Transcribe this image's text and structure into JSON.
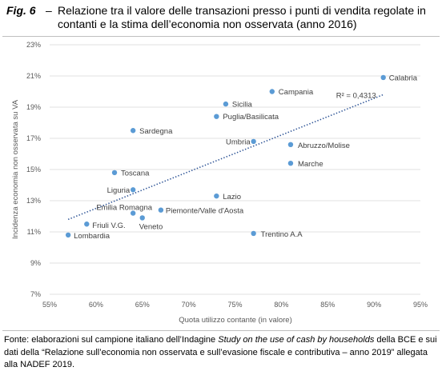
{
  "figure": {
    "label": "Fig. 6",
    "separator": "–"
  },
  "chart_data": {
    "type": "scatter",
    "title": "Relazione tra il valore delle transazioni presso i punti di vendita regolate in contanti e la stima dell’economia non osservata (anno 2016)",
    "xlabel": "Quota utilizzo contante (in valore)",
    "ylabel": "Incidenza economia non osservata su VA",
    "xlim": [
      55,
      95
    ],
    "ylim": [
      7,
      23
    ],
    "grid": "horizontal",
    "x_ticks": [
      {
        "value": 55,
        "label": "55%"
      },
      {
        "value": 60,
        "label": "60%"
      },
      {
        "value": 65,
        "label": "65%"
      },
      {
        "value": 70,
        "label": "70%"
      },
      {
        "value": 75,
        "label": "75%"
      },
      {
        "value": 80,
        "label": "80%"
      },
      {
        "value": 85,
        "label": "85%"
      },
      {
        "value": 90,
        "label": "90%"
      },
      {
        "value": 95,
        "label": "95%"
      }
    ],
    "y_ticks": [
      {
        "value": 23,
        "label": "23%"
      },
      {
        "value": 21,
        "label": "21%"
      },
      {
        "value": 19,
        "label": "19%"
      },
      {
        "value": 17,
        "label": "17%"
      },
      {
        "value": 15,
        "label": "15%"
      },
      {
        "value": 13,
        "label": "13%"
      },
      {
        "value": 11,
        "label": "11%"
      },
      {
        "value": 9,
        "label": "9%"
      },
      {
        "value": 7,
        "label": "7%"
      }
    ],
    "points": [
      {
        "label": "Calabria",
        "x": 91,
        "y": 20.9
      },
      {
        "label": "Campania",
        "x": 79,
        "y": 20.0
      },
      {
        "label": "Sicilia",
        "x": 74,
        "y": 19.2
      },
      {
        "label": "Puglia/Basilicata",
        "x": 73,
        "y": 18.4
      },
      {
        "label": "Sardegna",
        "x": 64,
        "y": 17.5
      },
      {
        "label": "Umbria",
        "x": 77,
        "y": 16.8
      },
      {
        "label": "Abruzzo/Molise",
        "x": 81,
        "y": 16.6
      },
      {
        "label": "Marche",
        "x": 81,
        "y": 15.4
      },
      {
        "label": "Toscana",
        "x": 62,
        "y": 14.8
      },
      {
        "label": "Liguria",
        "x": 64,
        "y": 13.7
      },
      {
        "label": "Lazio",
        "x": 73,
        "y": 13.3
      },
      {
        "label": "Piemonte/Valle d'Aosta",
        "x": 67,
        "y": 12.4
      },
      {
        "label": "Emilia Romagna",
        "x": 64,
        "y": 12.2
      },
      {
        "label": "Veneto",
        "x": 65,
        "y": 11.9
      },
      {
        "label": "Friuli V.G.",
        "x": 59,
        "y": 11.5
      },
      {
        "label": "Lombardia",
        "x": 57,
        "y": 10.8
      },
      {
        "label": "Trentino A.A",
        "x": 77,
        "y": 10.9
      }
    ],
    "trendline": {
      "type": "linear",
      "x": [
        57,
        91
      ],
      "y": [
        11.8,
        19.8
      ],
      "annotation": "R² = 0,4313"
    }
  },
  "source": {
    "prefix": "Fonte: elaborazioni sul campione italiano dell’Indagine ",
    "italic": "Study on the use of cash by households",
    "suffix": " della BCE e sui dati della “Relazione sull’economia non osservata e sull’evasione fiscale e contributiva – anno 2019” allegata alla NADEF 2019."
  },
  "colors": {
    "points": "#5B9BD5",
    "trendline": "#2F5597",
    "gridlines": "#D9D9D9",
    "axis_text": "#595959",
    "label_text": "#404040",
    "rule": "#BFBFBF"
  }
}
